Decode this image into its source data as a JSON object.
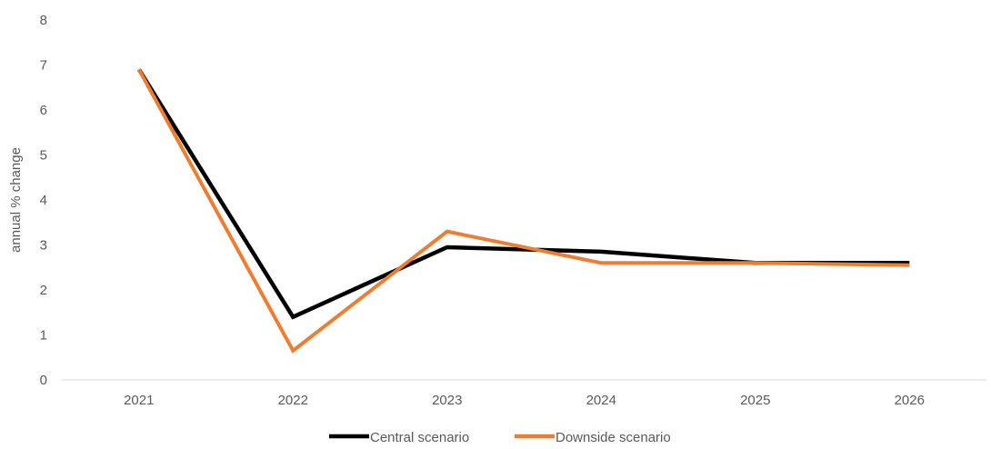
{
  "chart_data": {
    "type": "line",
    "title": "",
    "xlabel": "",
    "ylabel": "annual % change",
    "categories": [
      "2021",
      "2022",
      "2023",
      "2024",
      "2025",
      "2026"
    ],
    "ylim": [
      0,
      8
    ],
    "yticks": [
      "0",
      "1",
      "2",
      "3",
      "4",
      "5",
      "6",
      "7",
      "8"
    ],
    "grid": false,
    "legend_position": "bottom-center",
    "series": [
      {
        "name": "Central scenario",
        "color": "#000000",
        "values": [
          6.9,
          1.4,
          2.95,
          2.85,
          2.6,
          2.6
        ]
      },
      {
        "name": "Downside scenario",
        "color": "#ED7D31",
        "values": [
          6.9,
          0.65,
          3.3,
          2.6,
          2.6,
          2.55
        ]
      }
    ]
  }
}
